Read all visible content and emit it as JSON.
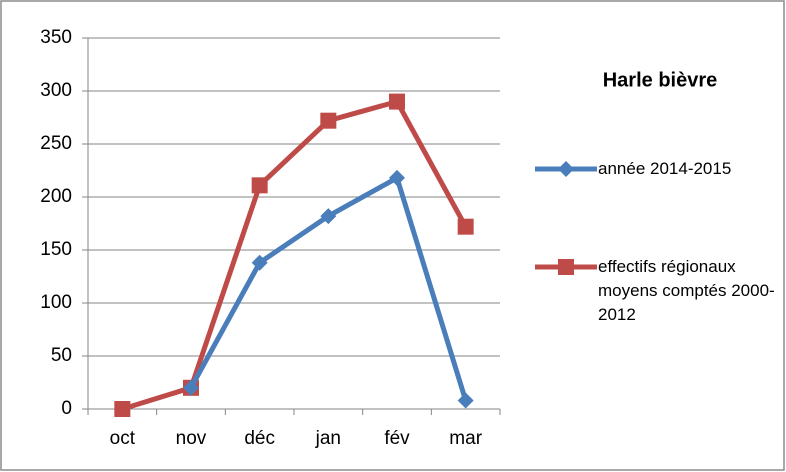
{
  "chart_data": {
    "type": "line",
    "title": "Harle bièvre",
    "categories": [
      "oct",
      "nov",
      "déc",
      "jan",
      "fév",
      "mar"
    ],
    "series": [
      {
        "name": "année 2014-2015",
        "color": "#4a7ebb",
        "marker": "diamond",
        "values": [
          null,
          20,
          138,
          182,
          218,
          8
        ]
      },
      {
        "name": "effectifs régionaux moyens comptés 2000-2012",
        "color": "#be4b48",
        "marker": "square",
        "values": [
          0,
          20,
          211,
          272,
          290,
          172
        ]
      }
    ],
    "ylim": [
      0,
      350
    ],
    "yticks": [
      0,
      50,
      100,
      150,
      200,
      250,
      300,
      350
    ],
    "grid": true
  }
}
